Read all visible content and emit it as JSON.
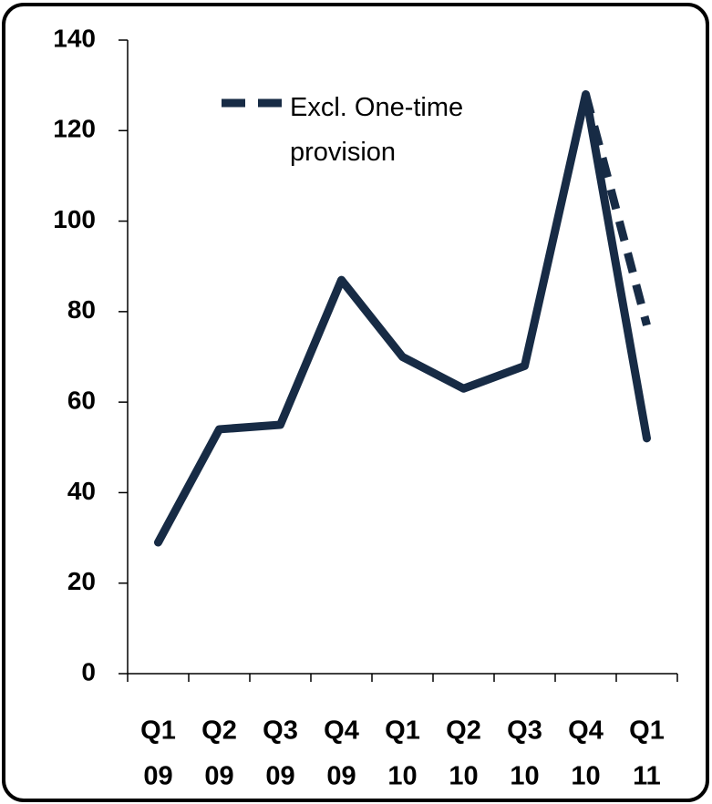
{
  "chart_data": {
    "type": "line",
    "categories": [
      [
        "Q1",
        "09"
      ],
      [
        "Q2",
        "09"
      ],
      [
        "Q3",
        "09"
      ],
      [
        "Q4",
        "09"
      ],
      [
        "Q1",
        "10"
      ],
      [
        "Q2",
        "10"
      ],
      [
        "Q3",
        "10"
      ],
      [
        "Q4",
        "10"
      ],
      [
        "Q1",
        "11"
      ]
    ],
    "series": [
      {
        "color": "#172b45",
        "values": [
          29,
          54,
          55,
          87,
          70,
          63,
          68,
          128,
          52
        ]
      },
      {
        "name": "Excl. One-time provision",
        "color": "#172b45",
        "dashed": true,
        "values": [
          null,
          null,
          null,
          null,
          null,
          null,
          null,
          128,
          77
        ]
      }
    ],
    "ylim": [
      0,
      140
    ],
    "yticks": [
      0,
      20,
      40,
      60,
      80,
      100,
      120,
      140
    ],
    "grid": false,
    "legend": "top-left"
  }
}
